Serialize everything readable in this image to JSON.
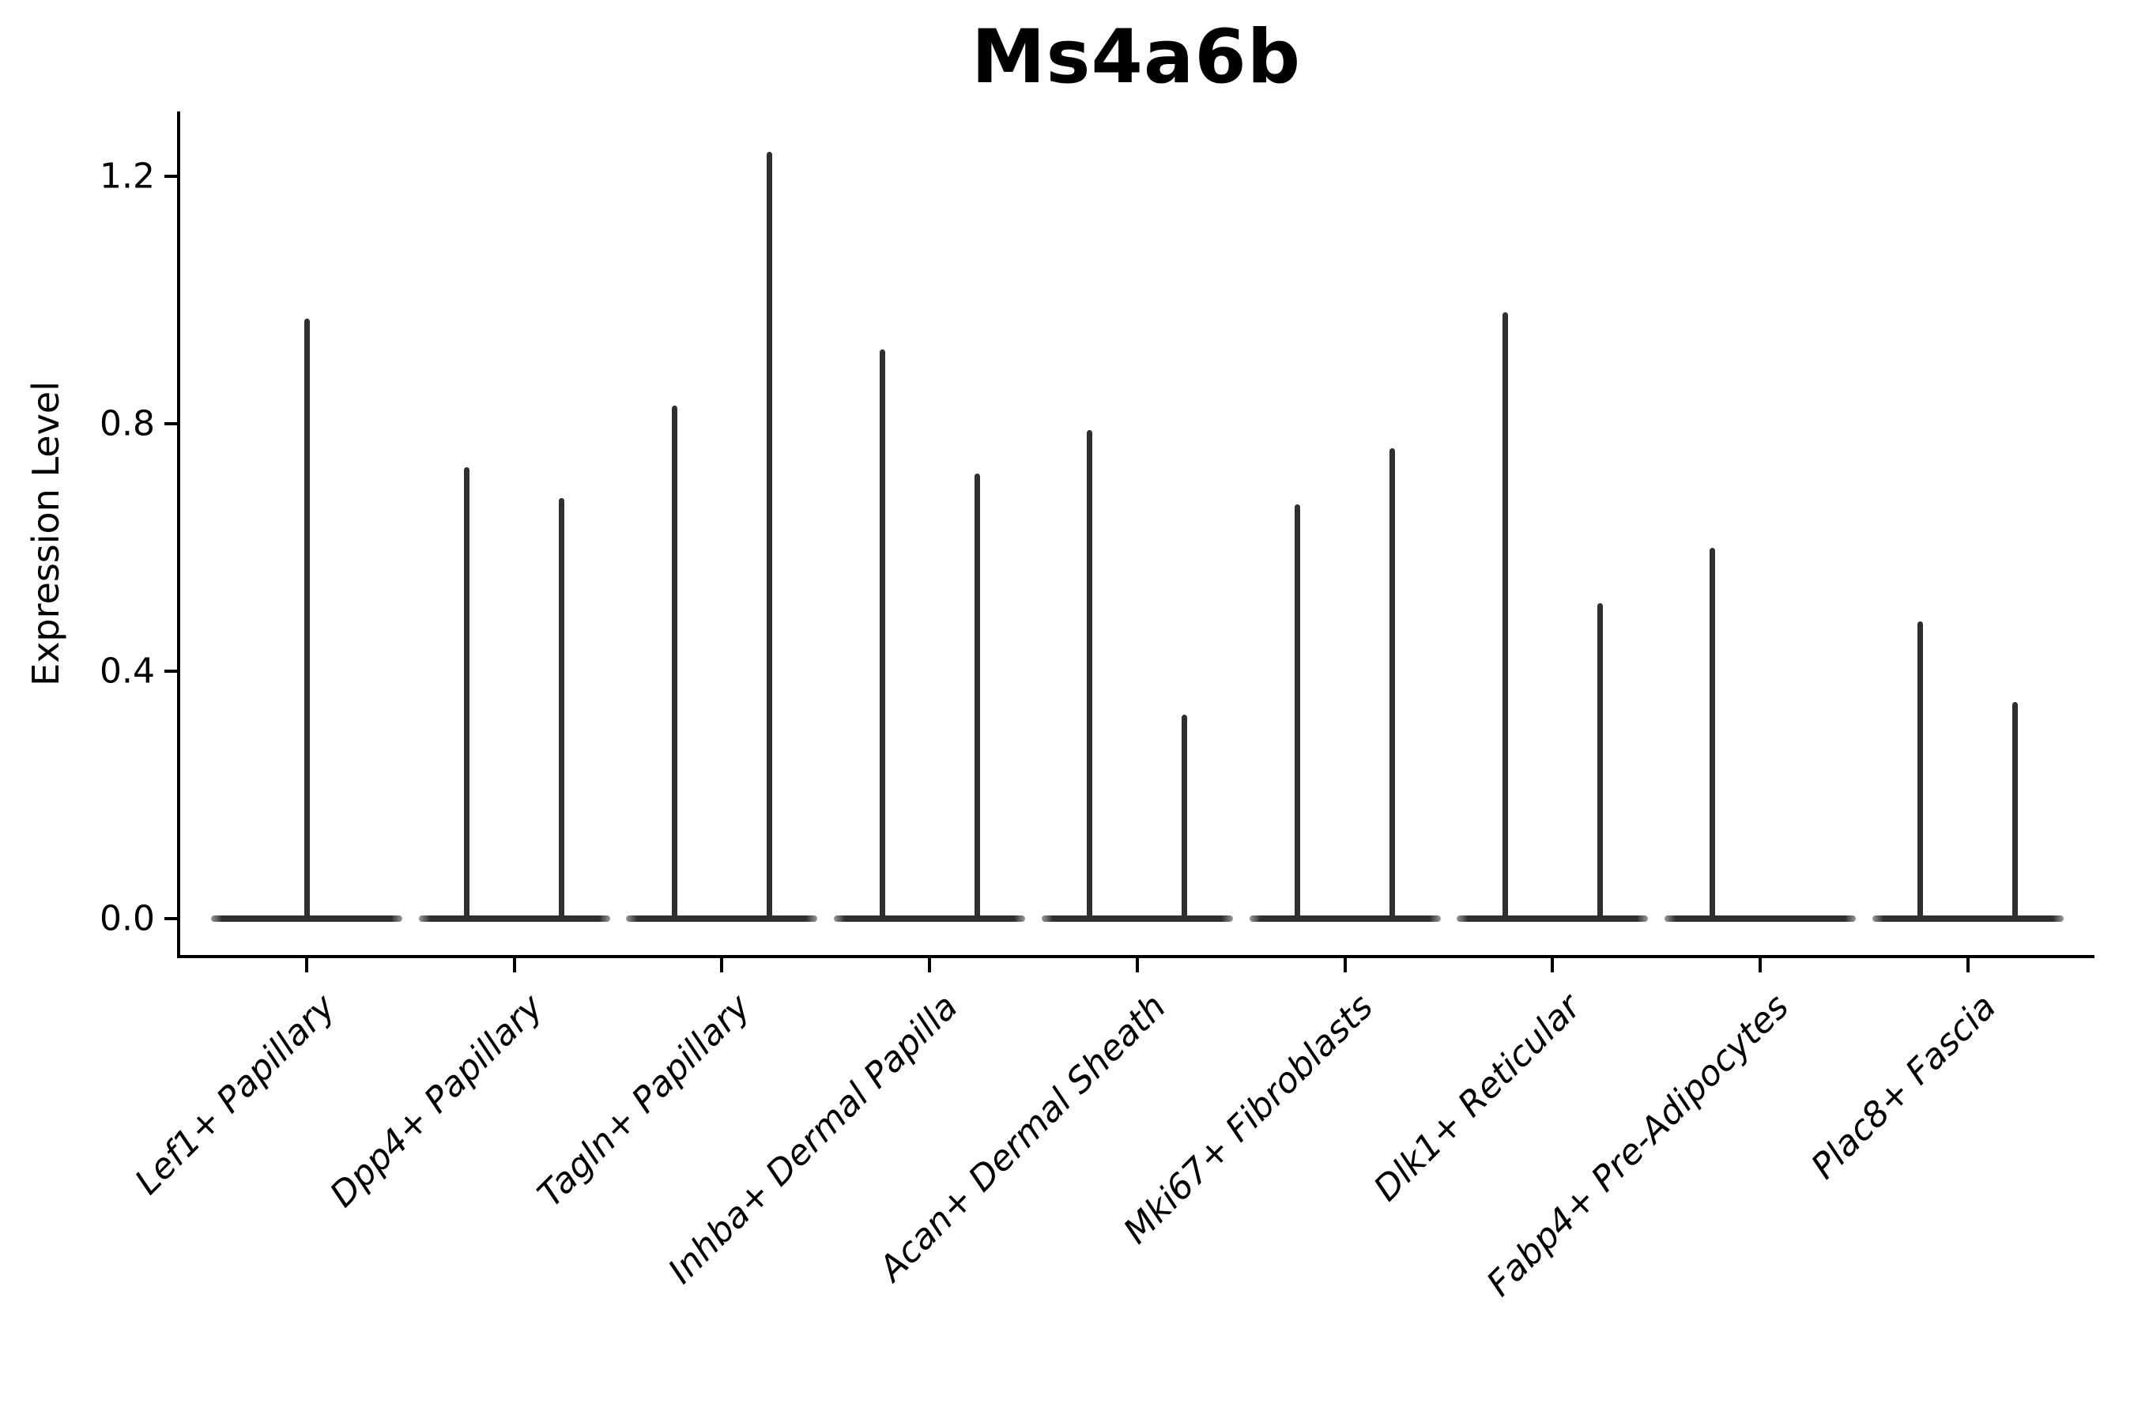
{
  "chart_data": {
    "type": "violin",
    "title": "Ms4a6b",
    "xlabel": "",
    "ylabel": "Expression Level",
    "ylim": [
      -0.06,
      1.3
    ],
    "yticks": [
      0.0,
      0.4,
      0.8,
      1.2
    ],
    "ytick_labels": [
      "0.0",
      "0.4",
      "0.8",
      "1.2"
    ],
    "grid": false,
    "legend": "none",
    "categories": [
      "Lef1+ Papillary",
      "Dpp4+ Papillary",
      "Tagln+ Papillary",
      "Inhba+ Dermal Papilla",
      "Acan+ Dermal Sheath",
      "Mki67+ Fibroblasts",
      "Dlk1+ Reticular",
      "Fabp4+ Pre-Adipocytes",
      "Plac8+ Fascia"
    ],
    "violins": [
      {
        "category": "Lef1+ Papillary",
        "spikes": [
          {
            "pos": "center",
            "max": 0.97
          }
        ]
      },
      {
        "category": "Dpp4+ Papillary",
        "spikes": [
          {
            "pos": "left",
            "max": 0.73
          },
          {
            "pos": "right",
            "max": 0.68
          }
        ]
      },
      {
        "category": "Tagln+ Papillary",
        "spikes": [
          {
            "pos": "left",
            "max": 0.83
          },
          {
            "pos": "right",
            "max": 1.24
          }
        ]
      },
      {
        "category": "Inhba+ Dermal Papilla",
        "spikes": [
          {
            "pos": "left",
            "max": 0.92
          },
          {
            "pos": "right",
            "max": 0.72
          }
        ]
      },
      {
        "category": "Acan+ Dermal Sheath",
        "spikes": [
          {
            "pos": "left",
            "max": 0.79
          },
          {
            "pos": "right",
            "max": 0.33
          }
        ]
      },
      {
        "category": "Mki67+ Fibroblasts",
        "spikes": [
          {
            "pos": "left",
            "max": 0.67
          },
          {
            "pos": "right",
            "max": 0.76
          }
        ]
      },
      {
        "category": "Dlk1+ Reticular",
        "spikes": [
          {
            "pos": "left",
            "max": 0.98
          },
          {
            "pos": "right",
            "max": 0.51
          }
        ]
      },
      {
        "category": "Fabp4+ Pre-Adipocytes",
        "spikes": [
          {
            "pos": "left",
            "max": 0.6
          }
        ]
      },
      {
        "category": "Plac8+ Fascia",
        "spikes": [
          {
            "pos": "left",
            "max": 0.48
          },
          {
            "pos": "right",
            "max": 0.35
          }
        ]
      }
    ],
    "baseline_value": 0.0,
    "colors": {
      "violin": "#2f2f2f",
      "axis": "#000000",
      "text": "#000000",
      "background": "#ffffff"
    }
  }
}
